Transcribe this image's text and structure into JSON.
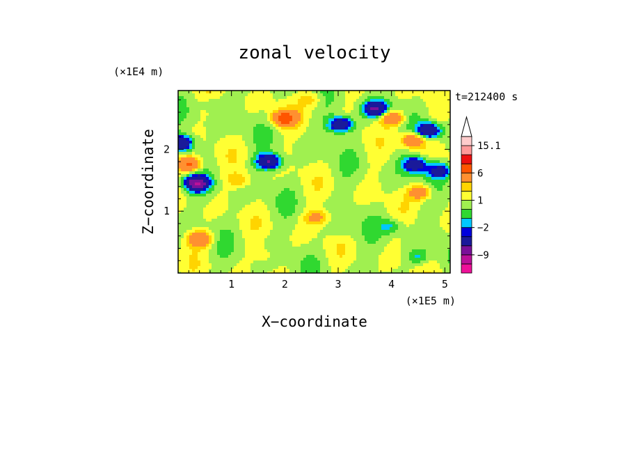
{
  "chart_data": {
    "type": "heatmap",
    "title": "zonal velocity",
    "xlabel": "X−coordinate",
    "ylabel": "Z−coordinate",
    "x_unit": "(×1E5 m)",
    "y_unit": "(×1E4 m)",
    "time_label": "t=212400 s",
    "xlim": [
      0.0,
      5.1
    ],
    "ylim": [
      0.0,
      2.95
    ],
    "x_ticks": [
      "1",
      "2",
      "3",
      "4",
      "5"
    ],
    "x_tick_values": [
      1,
      2,
      3,
      4,
      5
    ],
    "y_ticks": [
      "1",
      "2"
    ],
    "y_tick_values": [
      1,
      2
    ],
    "colorbar": {
      "labels": [
        "15.1",
        "6",
        "1",
        "−2",
        "−9"
      ],
      "label_values": [
        15.1,
        6,
        1,
        -2,
        -9
      ],
      "levels": [
        -15,
        -12,
        -9,
        -6,
        -3,
        -2,
        -1,
        0,
        1,
        2,
        3,
        6,
        9,
        12,
        15.1
      ],
      "colors": [
        "#ee1199",
        "#bb1199",
        "#7a1199",
        "#1a1a9a",
        "#0000dd",
        "#00c8ff",
        "#30d830",
        "#a0f050",
        "#ffff33",
        "#ffd400",
        "#ff9030",
        "#ff5500",
        "#ee1010",
        "#ff9999",
        "#ffcccc"
      ]
    },
    "field_features": [
      {
        "x": 0.35,
        "z": 1.45,
        "u": -9
      },
      {
        "x": 0.05,
        "z": 2.1,
        "u": -7
      },
      {
        "x": 1.7,
        "z": 1.8,
        "u": -7
      },
      {
        "x": 3.05,
        "z": 2.4,
        "u": -7
      },
      {
        "x": 3.7,
        "z": 2.65,
        "u": -7
      },
      {
        "x": 4.7,
        "z": 2.3,
        "u": -7
      },
      {
        "x": 4.45,
        "z": 1.75,
        "u": -6
      },
      {
        "x": 4.9,
        "z": 1.65,
        "u": -5
      },
      {
        "x": 2.0,
        "z": 2.5,
        "u": 7
      },
      {
        "x": 0.2,
        "z": 1.75,
        "u": 6
      },
      {
        "x": 4.0,
        "z": 2.5,
        "u": 5
      },
      {
        "x": 4.4,
        "z": 2.15,
        "u": 5
      },
      {
        "x": 0.4,
        "z": 0.55,
        "u": 5
      },
      {
        "x": 2.6,
        "z": 0.9,
        "u": 3
      },
      {
        "x": 4.55,
        "z": 1.3,
        "u": 4
      },
      {
        "x": 1.15,
        "z": 1.5,
        "u": 2
      },
      {
        "x": 3.1,
        "z": 0.7,
        "u": -1
      },
      {
        "x": 4.0,
        "z": 0.75,
        "u": -2
      },
      {
        "x": 4.5,
        "z": 0.25,
        "u": -2
      },
      {
        "x": 1.6,
        "z": 0.3,
        "u": 1
      },
      {
        "x": 0.6,
        "z": 2.75,
        "u": -1
      },
      {
        "x": 2.5,
        "z": 2.8,
        "u": 2
      }
    ]
  }
}
